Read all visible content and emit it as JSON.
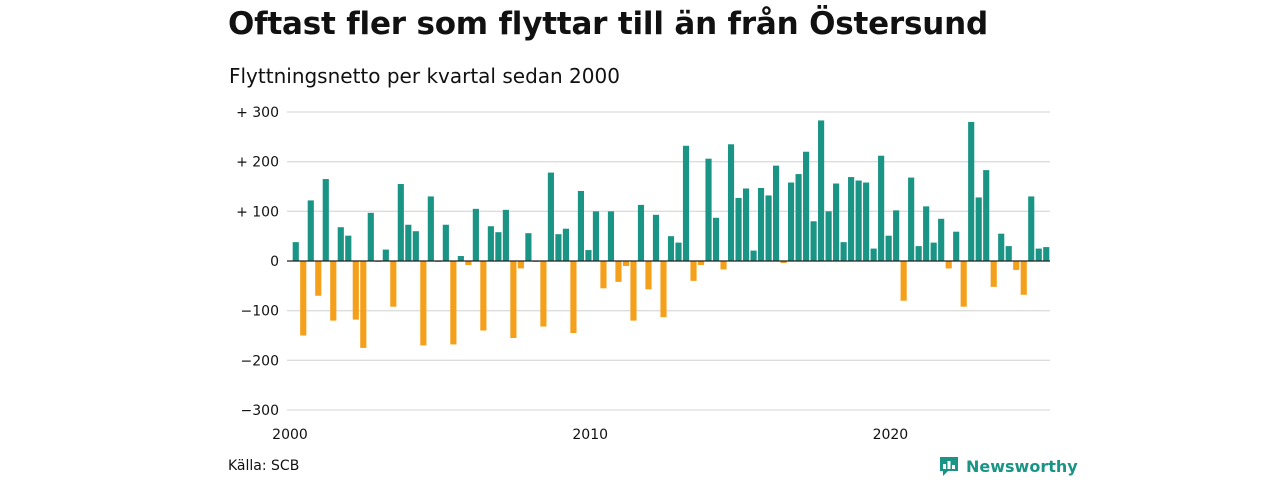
{
  "title": "Oftast fler som flyttar till än från Östersund",
  "subtitle": "Flyttningsnetto per kvartal sedan 2000",
  "source": "Källa: SCB",
  "brand": {
    "name": "Newsworthy",
    "icon": "newsworthy-logo-icon"
  },
  "colors": {
    "positive": "#1a9485",
    "negative": "#f5a01a",
    "grid": "#dddddd",
    "zero_line": "#222222"
  },
  "chart_data": {
    "type": "bar",
    "x_start": "2000 Q1",
    "x_end": "2025 Q2",
    "ylim": [
      -300,
      300
    ],
    "y_ticks": [
      300,
      200,
      100,
      0,
      -100,
      -200,
      -300
    ],
    "y_tick_labels": [
      "+ 300",
      "+ 200",
      "+ 100",
      "0",
      "−100",
      "−200",
      "−300"
    ],
    "x_tick_years": [
      2000,
      2010,
      2020
    ],
    "x_tick_labels": [
      "2000",
      "2010",
      "2020"
    ],
    "grid": true,
    "values": [
      38,
      -150,
      122,
      -70,
      165,
      -120,
      68,
      51,
      -118,
      -175,
      97,
      -2,
      23,
      -92,
      155,
      73,
      60,
      -170,
      130,
      -2,
      73,
      -168,
      10,
      -8,
      105,
      -140,
      70,
      58,
      103,
      -155,
      -15,
      56,
      -2,
      -132,
      178,
      54,
      65,
      -145,
      141,
      22,
      100,
      -55,
      100,
      -42,
      -10,
      -120,
      113,
      -57,
      93,
      -113,
      50,
      37,
      232,
      -40,
      -8,
      206,
      87,
      -17,
      235,
      127,
      146,
      21,
      147,
      132,
      192,
      -4,
      158,
      175,
      220,
      80,
      283,
      100,
      156,
      38,
      169,
      162,
      158,
      25,
      212,
      51,
      102,
      -80,
      168,
      30,
      110,
      37,
      85,
      -15,
      59,
      -92,
      280,
      128,
      183,
      -52,
      55,
      30,
      -18,
      -68,
      130,
      25,
      28
    ]
  }
}
